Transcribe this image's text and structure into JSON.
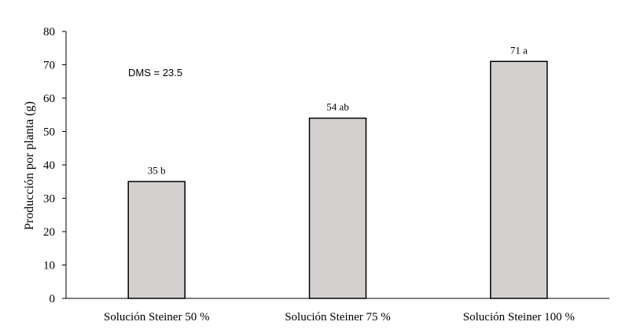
{
  "chart_data": {
    "type": "bar",
    "categories": [
      "Solución Steiner 50 %",
      "Solución Steiner 75 %",
      "Solución Steiner 100 %"
    ],
    "values": [
      35,
      54,
      71
    ],
    "data_labels": [
      "35 b",
      "54 ab",
      "71 a"
    ],
    "title": "",
    "xlabel": "",
    "ylabel": "Producción por planta (g)",
    "ylim": [
      0,
      80
    ],
    "yticks": [
      0,
      10,
      20,
      30,
      40,
      50,
      60,
      70,
      80
    ],
    "grid": false,
    "legend": "none",
    "annotation": "DMS = 23.5",
    "bar_color": "#d4d0d0",
    "bar_edge_color": "#000000"
  }
}
